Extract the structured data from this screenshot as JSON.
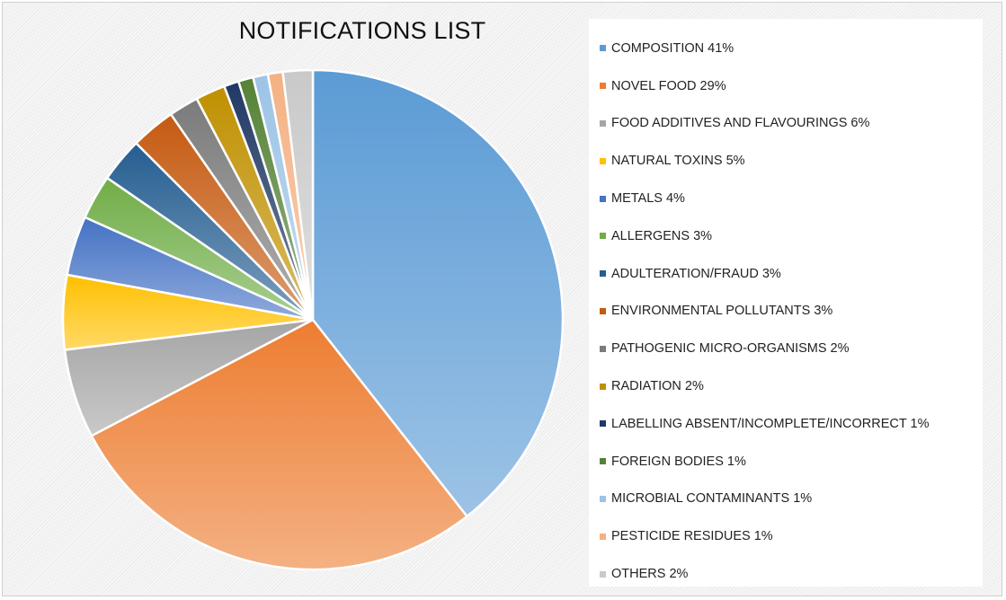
{
  "chart_data": {
    "type": "pie",
    "title": "NOTIFICATIONS LIST",
    "legend_position": "right",
    "slices": [
      {
        "label": "COMPOSITION",
        "value": 41,
        "color": "#5b9bd5",
        "legend": "COMPOSITION 41%"
      },
      {
        "label": "NOVEL FOOD",
        "value": 29,
        "color": "#ed7d31",
        "legend": "NOVEL FOOD 29%"
      },
      {
        "label": "FOOD ADDITIVES AND FLAVOURINGS",
        "value": 6,
        "color": "#a5a5a5",
        "legend": "FOOD ADDITIVES AND FLAVOURINGS 6%"
      },
      {
        "label": "NATURAL TOXINS",
        "value": 5,
        "color": "#ffc000",
        "legend": "NATURAL TOXINS 5%"
      },
      {
        "label": "METALS",
        "value": 4,
        "color": "#4472c4",
        "legend": "METALS 4%"
      },
      {
        "label": "ALLERGENS",
        "value": 3,
        "color": "#70ad47",
        "legend": "ALLERGENS 3%"
      },
      {
        "label": "ADULTERATION/FRAUD",
        "value": 3,
        "color": "#255e91",
        "legend": "ADULTERATION/FRAUD 3%"
      },
      {
        "label": "ENVIRONMENTAL POLLUTANTS",
        "value": 3,
        "color": "#c55a11",
        "legend": "ENVIRONMENTAL POLLUTANTS 3%"
      },
      {
        "label": "PATHOGENIC MICRO-ORGANISMS",
        "value": 2,
        "color": "#7b7b7b",
        "legend": "PATHOGENIC MICRO-ORGANISMS 2%"
      },
      {
        "label": "RADIATION",
        "value": 2,
        "color": "#bf9000",
        "legend": "RADIATION 2%"
      },
      {
        "label": "LABELLING ABSENT/INCOMPLETE/INCORRECT",
        "value": 1,
        "color": "#203864",
        "legend": "LABELLING ABSENT/INCOMPLETE/INCORRECT 1%"
      },
      {
        "label": "FOREIGN BODIES",
        "value": 1,
        "color": "#548235",
        "legend": "FOREIGN BODIES 1%"
      },
      {
        "label": "MICROBIAL CONTAMINANTS",
        "value": 1,
        "color": "#9dc3e6",
        "legend": "MICROBIAL CONTAMINANTS 1%"
      },
      {
        "label": "PESTICIDE RESIDUES",
        "value": 1,
        "color": "#f4b183",
        "legend": "PESTICIDE RESIDUES 1%"
      },
      {
        "label": "OTHERS",
        "value": 2,
        "color": "#c9c9c9",
        "legend": "OTHERS 2%"
      }
    ]
  }
}
